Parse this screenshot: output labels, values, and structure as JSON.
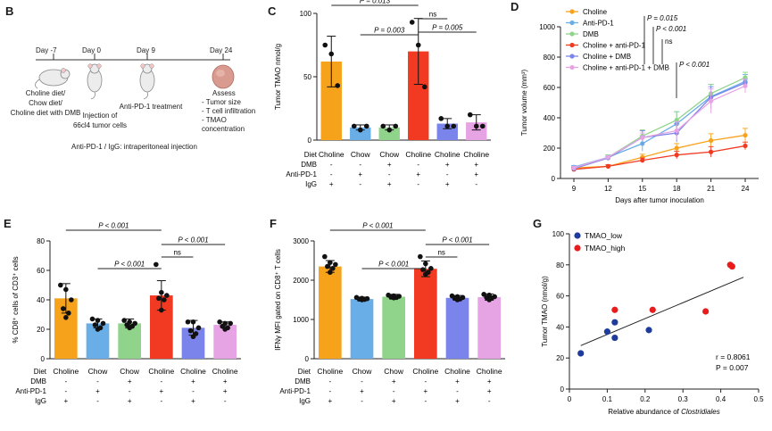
{
  "colors": {
    "choline": "#f7a21b",
    "chow": "#6aaee8",
    "chow_dmb": "#8fd48a",
    "choline_antipd1": "#f23a22",
    "choline_dmb": "#7b84ea",
    "choline_antipd1_dmb": "#e7a4e4",
    "tmao_low": "#1f3c9a",
    "tmao_high": "#e81c1c"
  },
  "panel_labels": [
    "B",
    "C",
    "D",
    "E",
    "F",
    "G"
  ],
  "panel_b": {
    "days": [
      "Day -7",
      "Day 0",
      "Day 9",
      "Day 24"
    ],
    "diet_text": [
      "Choline diet/",
      "Chow diet/",
      "Choline diet with DMB"
    ],
    "injection_text": [
      "Injection of",
      "66cl4 tumor cells"
    ],
    "treatment_text": "Anti-PD-1 treatment",
    "assess_text": [
      "Assess",
      "- Tumor size",
      "- T cell infiltration",
      "- TMAO concentration"
    ],
    "footnote": "Anti-PD-1 / IgG: intraperitoneal injection"
  },
  "design_table": {
    "row_labels": [
      "Diet",
      "DMB",
      "Anti-PD-1",
      "IgG"
    ],
    "columns": [
      {
        "diet": "Choline",
        "dmb": "-",
        "antipd1": "-",
        "igg": "+"
      },
      {
        "diet": "Chow",
        "dmb": "-",
        "antipd1": "+",
        "igg": "-"
      },
      {
        "diet": "Chow",
        "dmb": "+",
        "antipd1": "-",
        "igg": "+"
      },
      {
        "diet": "Choline",
        "dmb": "-",
        "antipd1": "+",
        "igg": "-"
      },
      {
        "diet": "Choline",
        "dmb": "+",
        "antipd1": "-",
        "igg": "+"
      },
      {
        "diet": "Choline",
        "dmb": "+",
        "antipd1": "+",
        "igg": "-"
      }
    ]
  },
  "chart_data": [
    {
      "id": "C",
      "type": "bar",
      "ylabel": "Tumor TMAO  nmol/g",
      "ylim": [
        0,
        100
      ],
      "yticks": [
        0,
        50,
        100
      ],
      "values": [
        62,
        10,
        10,
        70,
        13,
        14
      ],
      "errors": [
        20,
        2,
        2,
        26,
        4,
        6
      ],
      "points": [
        [
          75,
          68,
          43
        ],
        [
          11,
          8,
          11
        ],
        [
          11,
          8,
          11
        ],
        [
          93,
          75,
          42
        ],
        [
          17,
          11,
          11
        ],
        [
          20,
          11,
          11
        ]
      ],
      "annotations": [
        {
          "from": 0,
          "to": 3,
          "text": "P = 0.013"
        },
        {
          "from": 3,
          "to": 4,
          "text": "ns"
        },
        {
          "from": 1,
          "to": 3,
          "text": "P = 0.003"
        },
        {
          "from": 3,
          "to": 5,
          "text": "P = 0.005"
        }
      ]
    },
    {
      "id": "D",
      "type": "line",
      "title": "",
      "xlabel": "Days after tumor inoculation",
      "ylabel": "Tumor volume (mm³)",
      "x": [
        9,
        12,
        15,
        18,
        21,
        24
      ],
      "ylim": [
        0,
        1000
      ],
      "yticks": [
        0,
        200,
        400,
        600,
        800,
        1000
      ],
      "series": [
        {
          "name": "Choline",
          "values": [
            70,
            80,
            140,
            200,
            250,
            285
          ],
          "errors": [
            10,
            10,
            20,
            30,
            45,
            45
          ]
        },
        {
          "name": "Anti-PD-1",
          "values": [
            75,
            140,
            230,
            360,
            540,
            640
          ],
          "errors": [
            10,
            15,
            50,
            80,
            80,
            45
          ]
        },
        {
          "name": "DMB",
          "values": [
            65,
            140,
            280,
            385,
            560,
            665
          ],
          "errors": [
            10,
            15,
            40,
            55,
            60,
            35
          ]
        },
        {
          "name": "Choline + anti-PD-1",
          "values": [
            60,
            80,
            120,
            155,
            175,
            215
          ],
          "errors": [
            10,
            10,
            15,
            25,
            35,
            25
          ]
        },
        {
          "name": "Choline + DMB",
          "values": [
            65,
            135,
            270,
            300,
            535,
            630
          ],
          "errors": [
            10,
            10,
            45,
            60,
            70,
            25
          ]
        },
        {
          "name": "Choline + anti-PD-1 + DMB",
          "values": [
            70,
            140,
            270,
            315,
            510,
            610
          ],
          "errors": [
            10,
            10,
            30,
            60,
            80,
            45
          ]
        }
      ],
      "annotations": [
        "P = 0.015",
        "P < 0.001",
        "ns",
        "P < 0.001"
      ]
    },
    {
      "id": "E",
      "type": "bar",
      "ylabel": "% CD8⁺ cells of CD3⁺ cells",
      "ylim": [
        0,
        80
      ],
      "yticks": [
        0,
        20,
        40,
        60,
        80
      ],
      "values": [
        41,
        24,
        24,
        43,
        21,
        23
      ],
      "errors": [
        10,
        3,
        3,
        10,
        5,
        2
      ],
      "points": [
        [
          50,
          47,
          40,
          34,
          31,
          28
        ],
        [
          27,
          26,
          24,
          23,
          21,
          20
        ],
        [
          26,
          25,
          24,
          23,
          22,
          21
        ],
        [
          64,
          45,
          43,
          41,
          40,
          33
        ],
        [
          25,
          25,
          21,
          19,
          17,
          15
        ],
        [
          25,
          24,
          24,
          22,
          21,
          20
        ]
      ],
      "annotations": [
        {
          "from": 0,
          "to": 3,
          "text": "P < 0.001"
        },
        {
          "from": 3,
          "to": 5,
          "text": "P < 0.001"
        },
        {
          "from": 3,
          "to": 4,
          "text": "ns"
        },
        {
          "from": 1,
          "to": 3,
          "text": "P < 0.001"
        }
      ]
    },
    {
      "id": "F",
      "type": "bar",
      "ylabel": "IFNγ MFI gated on CD8⁺ T cells",
      "ylim": [
        0,
        3000
      ],
      "yticks": [
        0,
        1000,
        2000,
        3000
      ],
      "values": [
        2350,
        1520,
        1580,
        2290,
        1550,
        1570
      ],
      "errors": [
        150,
        50,
        60,
        200,
        60,
        80
      ],
      "points": [
        [
          2600,
          2450,
          2400,
          2350,
          2300,
          2200
        ],
        [
          1560,
          1540,
          1530,
          1520,
          1510,
          1500
        ],
        [
          1620,
          1600,
          1590,
          1570,
          1560,
          1550
        ],
        [
          2600,
          2420,
          2300,
          2270,
          2200,
          2150
        ],
        [
          1600,
          1580,
          1560,
          1540,
          1520,
          1500
        ],
        [
          1640,
          1620,
          1580,
          1560,
          1550,
          1500
        ]
      ],
      "annotations": [
        {
          "from": 0,
          "to": 3,
          "text": "P < 0.001"
        },
        {
          "from": 3,
          "to": 5,
          "text": "P < 0.001"
        },
        {
          "from": 3,
          "to": 4,
          "text": "ns"
        },
        {
          "from": 1,
          "to": 3,
          "text": "P < 0.001"
        }
      ]
    },
    {
      "id": "G",
      "type": "scatter",
      "xlabel_prefix": "Relative abundance of ",
      "xlabel_italic": "Clostridiales",
      "ylabel": "Tumor TMAO (nmol/g)",
      "xlim": [
        0,
        0.5
      ],
      "ylim": [
        0,
        100
      ],
      "xticks": [
        "0",
        "0.1",
        "0.2",
        "0.3",
        "0.4",
        "0.5"
      ],
      "yticks": [
        0,
        20,
        40,
        60,
        80,
        100
      ],
      "series": [
        {
          "name": "TMAO_low",
          "x": [
            0.03,
            0.1,
            0.12,
            0.12,
            0.21
          ],
          "y": [
            23,
            37,
            43,
            33,
            38
          ]
        },
        {
          "name": "TMAO_high",
          "x": [
            0.12,
            0.22,
            0.36,
            0.425,
            0.43
          ],
          "y": [
            51,
            51,
            50,
            80,
            79
          ]
        }
      ],
      "fit": {
        "x": [
          0.03,
          0.46
        ],
        "y": [
          28,
          72
        ]
      },
      "stats": [
        "r = 0.8061",
        "P = 0.007"
      ]
    }
  ]
}
